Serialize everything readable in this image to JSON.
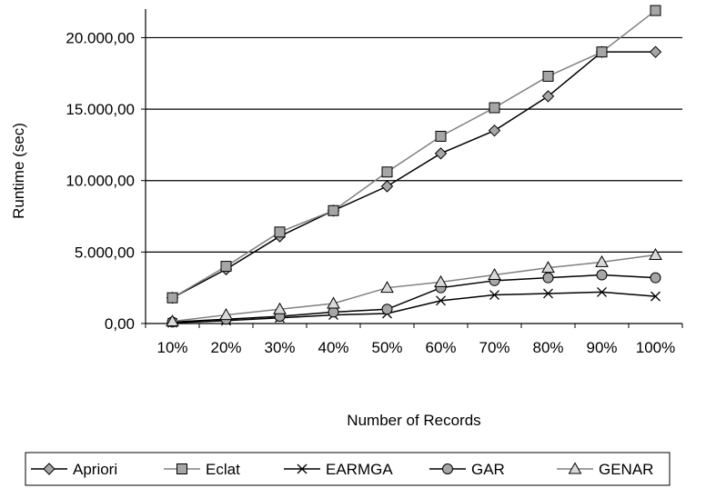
{
  "chart_data": {
    "type": "line",
    "title": "",
    "xlabel": "Number of Records",
    "ylabel": "Runtime (sec)",
    "categories": [
      "10%",
      "20%",
      "30%",
      "40%",
      "50%",
      "60%",
      "70%",
      "80%",
      "90%",
      "100%"
    ],
    "ylim": [
      0,
      22000
    ],
    "yticks": [
      0,
      5000,
      10000,
      15000,
      20000
    ],
    "ytick_labels": [
      "0,00",
      "5.000,00",
      "10.000,00",
      "15.000,00",
      "20.000,00"
    ],
    "grid": "horizontal",
    "legend_position": "bottom",
    "series": [
      {
        "name": "Apriori",
        "marker": "diamond",
        "line_color": "#000000",
        "marker_fill": "#a6a6a6",
        "values": [
          1800,
          3800,
          6100,
          7900,
          9600,
          11900,
          13500,
          15900,
          19000,
          19000
        ]
      },
      {
        "name": "Eclat",
        "marker": "square",
        "line_color": "#808080",
        "marker_fill": "#a6a6a6",
        "values": [
          1800,
          4000,
          6400,
          7900,
          10600,
          13100,
          15100,
          17300,
          19000,
          21900
        ]
      },
      {
        "name": "EARMGA",
        "marker": "cross",
        "line_color": "#000000",
        "marker_fill": "#000000",
        "values": [
          50,
          200,
          400,
          600,
          700,
          1600,
          2000,
          2100,
          2200,
          1900
        ]
      },
      {
        "name": "GAR",
        "marker": "circle",
        "line_color": "#000000",
        "marker_fill": "#a6a6a6",
        "values": [
          100,
          300,
          500,
          800,
          1000,
          2500,
          3000,
          3200,
          3400,
          3200
        ]
      },
      {
        "name": "GENAR",
        "marker": "triangle",
        "line_color": "#808080",
        "marker_fill": "#d9d9d9",
        "values": [
          150,
          600,
          1000,
          1400,
          2500,
          2900,
          3400,
          3900,
          4300,
          4800
        ]
      }
    ]
  }
}
